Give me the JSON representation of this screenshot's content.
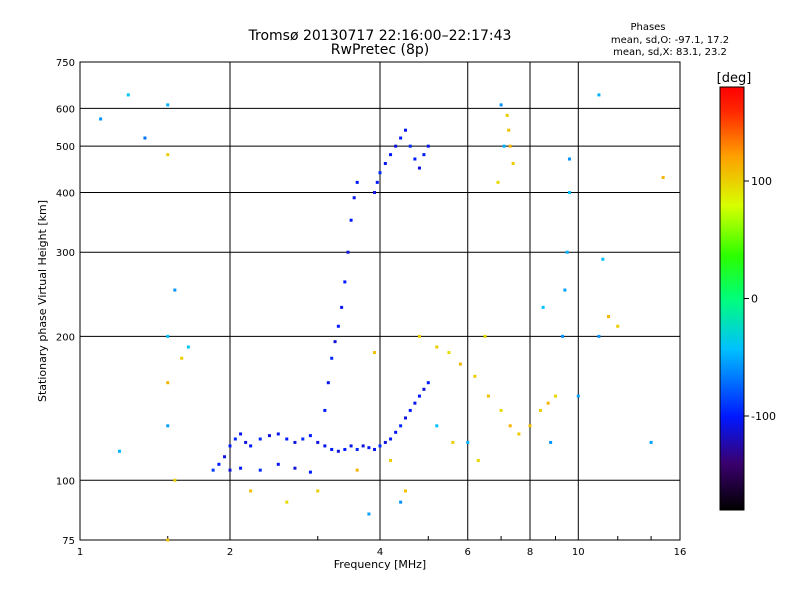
{
  "header": {
    "title": "Tromsø 20130717 22:16:00–22:17:43",
    "subtitle": "RwPretec (8p)",
    "phases_title": "Phases",
    "phases_o": "mean, sd,O: -97.1, 17.2",
    "phases_x": "mean, sd,X:  83.1, 23.2"
  },
  "chart_data": {
    "type": "scatter",
    "xlabel": "Frequency [MHz]",
    "ylabel": "Stationary phase Virtual Height [km]",
    "xscale": "log",
    "yscale": "log",
    "xlim": [
      1,
      16
    ],
    "ylim": [
      75,
      750
    ],
    "xticks": [
      1,
      2,
      4,
      6,
      8,
      10,
      16
    ],
    "yticks": [
      75,
      100,
      200,
      300,
      400,
      500,
      600,
      750
    ],
    "grid": true,
    "colorbar": {
      "label": "[deg]",
      "range": [
        -180,
        180
      ],
      "ticks": [
        -100,
        0,
        100
      ],
      "colors": [
        "#000000",
        "#3a006e",
        "#0018ff",
        "#00c0ff",
        "#00ff7a",
        "#2bff00",
        "#d8ff00",
        "#ff9c00",
        "#ff2a00",
        "#ff0000"
      ]
    },
    "series": [
      {
        "points": [
          [
            1.85,
            105,
            -90
          ],
          [
            1.9,
            108,
            -100
          ],
          [
            1.95,
            112,
            -110
          ],
          [
            2.0,
            118,
            -100
          ],
          [
            2.05,
            122,
            -95
          ],
          [
            2.1,
            125,
            -105
          ],
          [
            2.15,
            120,
            -110
          ],
          [
            2.2,
            118,
            -100
          ],
          [
            2.3,
            122,
            -95
          ],
          [
            2.4,
            124,
            -110
          ],
          [
            2.5,
            125,
            -105
          ],
          [
            2.6,
            122,
            -100
          ],
          [
            2.7,
            120,
            -110
          ],
          [
            2.8,
            122,
            -95
          ],
          [
            2.9,
            124,
            -100
          ],
          [
            3.0,
            120,
            -110
          ],
          [
            3.1,
            118,
            -105
          ],
          [
            3.2,
            116,
            -100
          ],
          [
            3.3,
            115,
            -110
          ],
          [
            3.4,
            116,
            -100
          ],
          [
            3.5,
            118,
            -105
          ],
          [
            3.6,
            116,
            -95
          ],
          [
            3.7,
            118,
            -110
          ],
          [
            3.8,
            117,
            -100
          ],
          [
            3.9,
            116,
            -105
          ],
          [
            4.0,
            118,
            -95
          ],
          [
            4.1,
            120,
            -110
          ],
          [
            4.2,
            122,
            -100
          ],
          [
            4.3,
            126,
            -105
          ],
          [
            4.4,
            130,
            -95
          ],
          [
            4.5,
            135,
            -110
          ],
          [
            4.6,
            140,
            -100
          ],
          [
            4.7,
            145,
            -105
          ],
          [
            4.8,
            150,
            -100
          ],
          [
            4.9,
            155,
            -110
          ],
          [
            5.0,
            160,
            -100
          ],
          [
            3.1,
            140,
            -100
          ],
          [
            3.15,
            160,
            -105
          ],
          [
            3.2,
            180,
            -95
          ],
          [
            3.25,
            195,
            -110
          ],
          [
            3.3,
            210,
            -100
          ],
          [
            3.35,
            230,
            -105
          ],
          [
            3.4,
            260,
            -100
          ],
          [
            3.45,
            300,
            -110
          ],
          [
            3.5,
            350,
            -100
          ],
          [
            3.55,
            390,
            -105
          ],
          [
            3.6,
            420,
            -100
          ],
          [
            3.9,
            400,
            -110
          ],
          [
            3.95,
            420,
            -100
          ],
          [
            4.0,
            440,
            -95
          ],
          [
            4.1,
            460,
            -105
          ],
          [
            4.2,
            480,
            -100
          ],
          [
            4.3,
            500,
            -110
          ],
          [
            4.4,
            520,
            -100
          ],
          [
            4.5,
            540,
            -105
          ],
          [
            4.6,
            500,
            -95
          ],
          [
            4.7,
            470,
            -100
          ],
          [
            4.8,
            450,
            -110
          ],
          [
            4.9,
            480,
            -100
          ],
          [
            5.0,
            500,
            -105
          ],
          [
            2.0,
            105,
            -110
          ],
          [
            2.1,
            106,
            -100
          ],
          [
            2.3,
            105,
            -95
          ],
          [
            2.5,
            108,
            -105
          ],
          [
            2.7,
            106,
            -110
          ],
          [
            2.9,
            104,
            -100
          ]
        ]
      },
      {
        "points": [
          [
            5.2,
            190,
            100
          ],
          [
            5.5,
            185,
            95
          ],
          [
            5.8,
            175,
            110
          ],
          [
            6.2,
            165,
            100
          ],
          [
            6.6,
            150,
            105
          ],
          [
            7.0,
            140,
            95
          ],
          [
            7.3,
            130,
            110
          ],
          [
            7.6,
            125,
            100
          ],
          [
            8.0,
            130,
            105
          ],
          [
            8.4,
            140,
            100
          ],
          [
            8.7,
            145,
            110
          ],
          [
            9.0,
            150,
            95
          ],
          [
            7.2,
            580,
            100
          ],
          [
            7.25,
            540,
            105
          ],
          [
            7.3,
            500,
            110
          ],
          [
            7.4,
            460,
            100
          ],
          [
            6.9,
            420,
            95
          ],
          [
            1.6,
            180,
            100
          ],
          [
            1.5,
            160,
            110
          ],
          [
            1.55,
            100,
            100
          ],
          [
            2.2,
            95,
            105
          ],
          [
            2.6,
            90,
            95
          ],
          [
            3.0,
            95,
            100
          ],
          [
            3.6,
            105,
            110
          ],
          [
            4.2,
            110,
            100
          ],
          [
            4.5,
            95,
            105
          ],
          [
            5.6,
            120,
            100
          ],
          [
            6.3,
            110,
            95
          ],
          [
            12.0,
            210,
            100
          ],
          [
            11.5,
            220,
            110
          ],
          [
            1.5,
            480,
            100
          ],
          [
            1.5,
            75,
            105
          ],
          [
            14.8,
            430,
            110
          ],
          [
            6.5,
            200,
            95
          ],
          [
            4.8,
            200,
            100
          ],
          [
            3.9,
            185,
            105
          ]
        ]
      },
      {
        "points": [
          [
            1.1,
            570,
            -60
          ],
          [
            1.25,
            640,
            -40
          ],
          [
            1.35,
            520,
            -70
          ],
          [
            1.5,
            610,
            -50
          ],
          [
            1.55,
            250,
            -60
          ],
          [
            1.5,
            200,
            -45
          ],
          [
            1.5,
            130,
            -55
          ],
          [
            1.2,
            115,
            -50
          ],
          [
            1.65,
            190,
            -40
          ],
          [
            9.6,
            470,
            -60
          ],
          [
            9.6,
            400,
            -45
          ],
          [
            9.5,
            300,
            -50
          ],
          [
            9.4,
            250,
            -55
          ],
          [
            9.3,
            200,
            -60
          ],
          [
            11.0,
            640,
            -50
          ],
          [
            11.2,
            290,
            -45
          ],
          [
            11.0,
            200,
            -60
          ],
          [
            14.0,
            120,
            -55
          ],
          [
            7.0,
            610,
            -60
          ],
          [
            7.1,
            500,
            -50
          ],
          [
            8.5,
            230,
            -45
          ],
          [
            10.0,
            150,
            -55
          ],
          [
            8.8,
            120,
            -60
          ],
          [
            6.0,
            120,
            -50
          ],
          [
            5.2,
            130,
            -45
          ],
          [
            4.4,
            90,
            -60
          ],
          [
            3.8,
            85,
            -55
          ]
        ]
      }
    ]
  }
}
